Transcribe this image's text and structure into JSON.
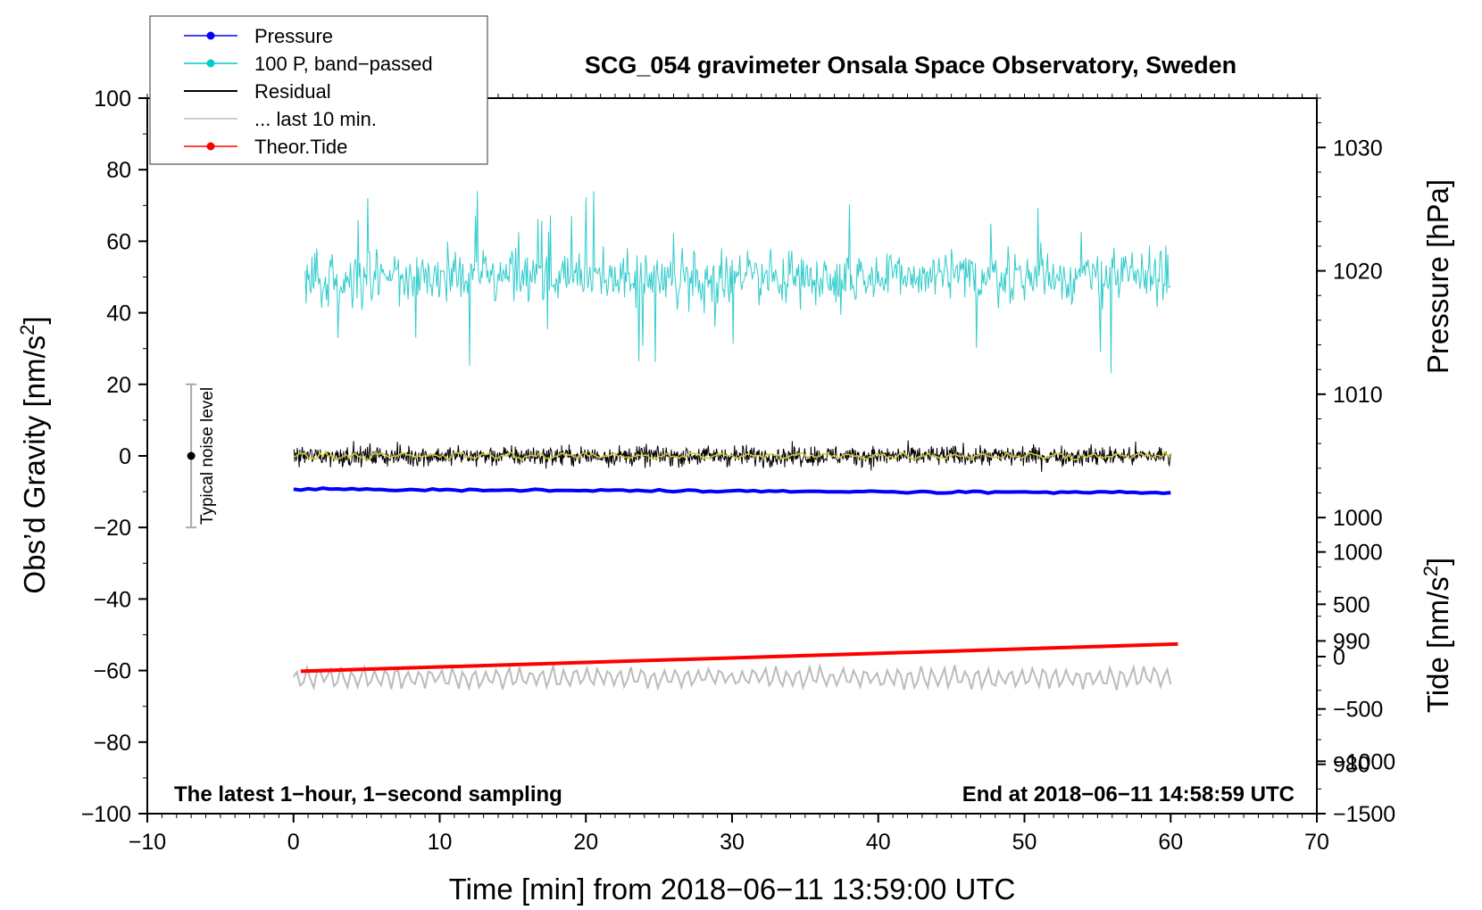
{
  "chart_data": {
    "type": "line",
    "title": "SCG_054 gravimeter Onsala Space Observatory, Sweden",
    "xlabel": "Time [min] from 2018−06−11 13:59:00 UTC",
    "ylabel_left": "Obs’d Gravity [nm/s",
    "ylabel_left_sup": "2",
    "ylabel_left_end": "]",
    "ylabel_right_pressure": "Pressure [hPa]",
    "ylabel_right_tide": "Tide [nm/s",
    "ylabel_right_tide_sup": "2",
    "ylabel_right_tide_end": "]",
    "xlim": [
      -10,
      70
    ],
    "ylim_left": [
      -100,
      100
    ],
    "pressure_range": [
      976,
      1034
    ],
    "tide_range": [
      -1500,
      1500
    ],
    "xticks": [
      -10,
      0,
      10,
      20,
      30,
      40,
      50,
      60,
      70
    ],
    "xtick_labels": [
      "−10",
      "0",
      "10",
      "20",
      "30",
      "40",
      "50",
      "60",
      "70"
    ],
    "yticks_left": [
      -100,
      -80,
      -60,
      -40,
      -20,
      0,
      20,
      40,
      60,
      80,
      100
    ],
    "ytick_labels_left": [
      "−100",
      "−80",
      "−60",
      "−40",
      "−20",
      "0",
      "20",
      "40",
      "60",
      "80",
      "100"
    ],
    "yticks_pressure": [
      980,
      990,
      1000,
      1010,
      1020,
      1030
    ],
    "ytick_labels_pressure": [
      "980",
      "990",
      "1000",
      "1010",
      "1020",
      "1030"
    ],
    "yticks_tide": [
      -1500,
      -1000,
      -500,
      0,
      500,
      1000
    ],
    "ytick_labels_tide": [
      "−1500",
      "−1000",
      "−500",
      "0",
      "500",
      "1000"
    ],
    "legend": [
      {
        "label": "Pressure",
        "color": "#0000ff",
        "marker": true
      },
      {
        "label": "100 P, band−passed",
        "color": "#00cccc",
        "marker": true
      },
      {
        "label": "Residual",
        "color": "#000000",
        "marker": false
      },
      {
        "label": "... last 10 min.",
        "color": "#bbbbbb",
        "marker": false
      },
      {
        "label": "Theor.Tide",
        "color": "#ff0000",
        "marker": true
      }
    ],
    "series": [
      {
        "name": "Pressure",
        "axis": "pressure",
        "color": "#0000ff",
        "x_range": [
          0,
          60
        ],
        "start": 1002.3,
        "end": 1002.0
      },
      {
        "name": "100 P, band-passed",
        "axis": "left",
        "color": "#33cccc",
        "x_range": [
          0.8,
          60
        ],
        "center": 50,
        "amplitude": 11
      },
      {
        "name": "Residual",
        "axis": "left",
        "color": "#000000",
        "x_range": [
          0,
          60
        ],
        "center": 0,
        "amplitude": 3
      },
      {
        "name": "Residual smoothed",
        "axis": "left",
        "color": "#cccc33",
        "x_range": [
          0,
          60
        ],
        "center": 0,
        "amplitude": 1
      },
      {
        "name": "... last 10 min.",
        "axis": "left",
        "color": "#bbbbbb",
        "x_range": [
          0,
          60
        ],
        "center": -62,
        "amplitude": 2.5
      },
      {
        "name": "Theor.Tide",
        "axis": "tide",
        "color": "#ff0000",
        "x_range": [
          0.5,
          60.5
        ],
        "start": -140,
        "end": 120
      }
    ],
    "noise_bar": {
      "x": -7,
      "center": 0,
      "low": -20,
      "high": 20,
      "label": "Typical noise level"
    },
    "annotation_left": "The latest 1−hour, 1−second sampling",
    "annotation_right": "End at 2018−06−11 14:58:59 UTC"
  }
}
